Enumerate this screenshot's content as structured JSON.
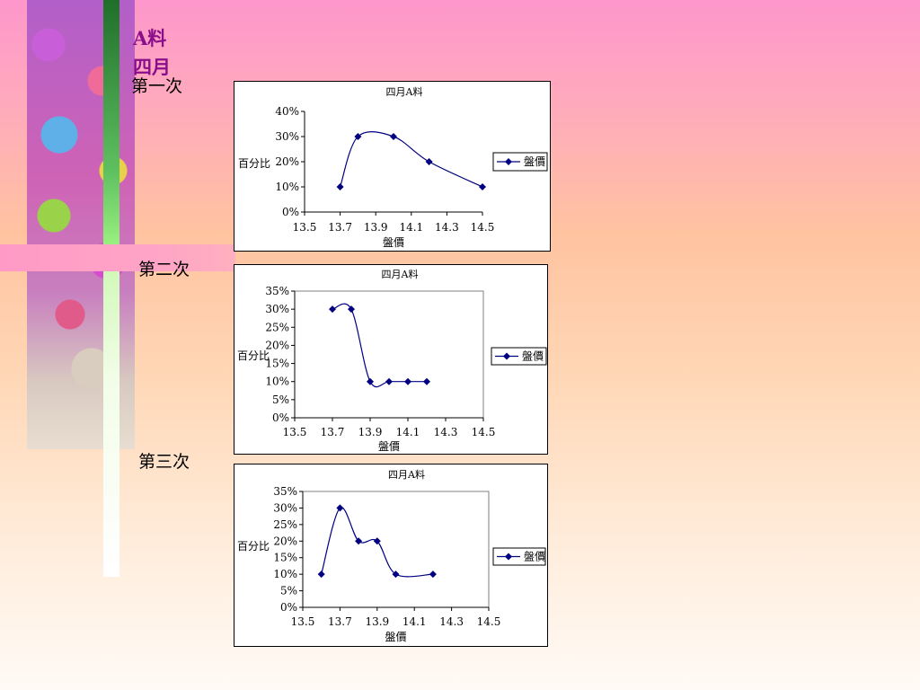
{
  "header": {
    "title_a": "A料",
    "title_b": "四月"
  },
  "sections": [
    "第一次",
    "第二次",
    "第三次"
  ],
  "chart_data": [
    {
      "type": "scatter",
      "title": "四月A料",
      "xlabel": "盤價",
      "ylabel": "百分比",
      "x": [
        13.7,
        13.8,
        14.0,
        14.2,
        14.5
      ],
      "series": [
        {
          "name": "盤價",
          "values": [
            10,
            30,
            30,
            20,
            10
          ]
        }
      ],
      "xlim": [
        13.5,
        14.5
      ],
      "ylim": [
        0,
        40
      ],
      "xticks": [
        "13.5",
        "13.7",
        "13.9",
        "14.1",
        "14.3",
        "14.5"
      ],
      "yticks": [
        "0%",
        "10%",
        "20%",
        "30%",
        "40%"
      ],
      "grid": false,
      "plot_border": false,
      "legend": "right",
      "line_color": "#000080",
      "smooth": true
    },
    {
      "type": "scatter",
      "title": "四月A料",
      "xlabel": "盤價",
      "ylabel": "百分比",
      "x": [
        13.7,
        13.8,
        13.9,
        14.0,
        14.1,
        14.2
      ],
      "series": [
        {
          "name": "盤價",
          "values": [
            30,
            30,
            10,
            10,
            10,
            10
          ]
        }
      ],
      "xlim": [
        13.5,
        14.5
      ],
      "ylim": [
        0,
        35
      ],
      "xticks": [
        "13.5",
        "13.7",
        "13.9",
        "14.1",
        "14.3",
        "14.5"
      ],
      "yticks": [
        "0%",
        "5%",
        "10%",
        "15%",
        "20%",
        "25%",
        "30%",
        "35%"
      ],
      "grid": false,
      "plot_border": true,
      "legend": "right",
      "line_color": "#000080",
      "smooth": true
    },
    {
      "type": "scatter",
      "title": "四月A料",
      "xlabel": "盤價",
      "ylabel": "百分比",
      "x": [
        13.6,
        13.7,
        13.8,
        13.9,
        14.0,
        14.2
      ],
      "series": [
        {
          "name": "盤價",
          "values": [
            10,
            30,
            20,
            20,
            10,
            10
          ]
        }
      ],
      "xlim": [
        13.5,
        14.5
      ],
      "ylim": [
        0,
        35
      ],
      "xticks": [
        "13.5",
        "13.7",
        "13.9",
        "14.1",
        "14.3",
        "14.5"
      ],
      "yticks": [
        "0%",
        "5%",
        "10%",
        "15%",
        "20%",
        "25%",
        "30%",
        "35%"
      ],
      "grid": false,
      "plot_border": true,
      "legend": "right",
      "line_color": "#000080",
      "smooth": true
    }
  ]
}
